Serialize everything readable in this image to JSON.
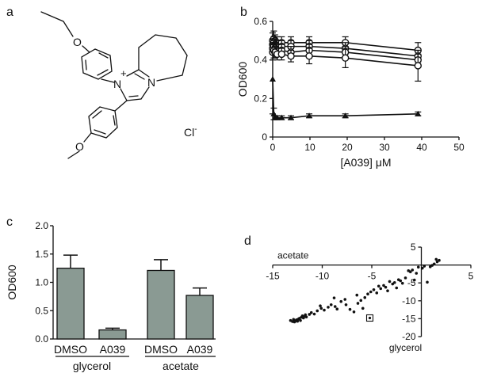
{
  "panels": {
    "a": "a",
    "b": "b",
    "c": "c",
    "d": "d"
  },
  "structure": {
    "nplus": "N",
    "plus": "+",
    "n": "N",
    "o1": "O",
    "o2": "O",
    "cl": "Cl",
    "clminus": "-"
  },
  "chart_data": [
    {
      "id": "b",
      "type": "line",
      "xlabel": "[A039] μM",
      "ylabel": "OD600",
      "xlim": [
        0,
        50
      ],
      "ylim": [
        0,
        0.6
      ],
      "xticks": [
        0,
        10,
        20,
        30,
        40,
        50
      ],
      "yticks": [
        0,
        0.2,
        0.4,
        0.6
      ],
      "x": [
        0,
        0.3,
        0.6,
        1.2,
        2.4,
        4.9,
        9.8,
        19.5,
        39
      ],
      "series": [
        {
          "marker": "circle",
          "values": [
            0.5,
            0.51,
            0.5,
            0.49,
            0.49,
            0.49,
            0.49,
            0.49,
            0.45
          ],
          "err": [
            0.04,
            0.04,
            0.03,
            0.03,
            0.03,
            0.03,
            0.03,
            0.03,
            0.04
          ]
        },
        {
          "marker": "circle",
          "values": [
            0.48,
            0.49,
            0.48,
            0.47,
            0.47,
            0.47,
            0.47,
            0.46,
            0.42
          ],
          "err": [
            0.03,
            0.03,
            0.03,
            0.03,
            0.03,
            0.03,
            0.03,
            0.03,
            0.03
          ]
        },
        {
          "marker": "circle",
          "values": [
            0.46,
            0.47,
            0.46,
            0.45,
            0.45,
            0.44,
            0.45,
            0.44,
            0.4
          ],
          "err": [
            0.03,
            0.03,
            0.03,
            0.03,
            0.03,
            0.03,
            0.03,
            0.03,
            0.03
          ]
        },
        {
          "marker": "circle",
          "values": [
            0.44,
            0.45,
            0.44,
            0.43,
            0.43,
            0.42,
            0.42,
            0.41,
            0.37
          ],
          "err": [
            0.04,
            0.04,
            0.03,
            0.03,
            0.03,
            0.03,
            0.04,
            0.05,
            0.08
          ]
        },
        {
          "marker": "triangle",
          "values": [
            0.3,
            0.12,
            0.1,
            0.1,
            0.1,
            0.1,
            0.11,
            0.11,
            0.12
          ],
          "err": [
            0.18,
            0.03,
            0.01,
            0.01,
            0.01,
            0.01,
            0.01,
            0.01,
            0.01
          ]
        }
      ]
    },
    {
      "id": "c",
      "type": "bar",
      "ylabel": "OD600",
      "ylim": [
        0,
        2.0
      ],
      "yticks": [
        0.0,
        0.5,
        1.0,
        1.5,
        2.0
      ],
      "categories": [
        "DMSO",
        "A039",
        "DMSO",
        "A039"
      ],
      "groups": [
        "glycerol",
        "acetate"
      ],
      "values": [
        1.25,
        0.16,
        1.21,
        0.77
      ],
      "err": [
        0.23,
        0.03,
        0.19,
        0.13
      ],
      "color": "#8a9a93"
    },
    {
      "id": "d",
      "type": "scatter",
      "xlabel": "acetate",
      "ylabel": "glycerol",
      "xlim": [
        -15,
        5
      ],
      "ylim": [
        -20,
        5
      ],
      "xticks": [
        -15,
        -10,
        -5,
        5
      ],
      "yticks": [
        5,
        -5,
        -10,
        -15,
        -20
      ],
      "highlight": {
        "x": -5.2,
        "y": -14.8
      },
      "points": [
        [
          -13.2,
          -15.5
        ],
        [
          -13,
          -15.8
        ],
        [
          -12.9,
          -15.2
        ],
        [
          -12.8,
          -15.9
        ],
        [
          -12.7,
          -15.6
        ],
        [
          -12.6,
          -15.3
        ],
        [
          -12.5,
          -15.7
        ],
        [
          -12.4,
          -15.1
        ],
        [
          -12.3,
          -14.9
        ],
        [
          -12.2,
          -15.5
        ],
        [
          -12.1,
          -14.6
        ],
        [
          -12,
          -14.2
        ],
        [
          -11.9,
          -14.8
        ],
        [
          -11.8,
          -14.4
        ],
        [
          -11.7,
          -13.9
        ],
        [
          -11.6,
          -14.5
        ],
        [
          -11.3,
          -13.8
        ],
        [
          -11.1,
          -13.3
        ],
        [
          -10.8,
          -13.7
        ],
        [
          -10.5,
          -12.8
        ],
        [
          -10.1,
          -12.1
        ],
        [
          -9.8,
          -12.6
        ],
        [
          -9.4,
          -11.8
        ],
        [
          -9.1,
          -11.1
        ],
        [
          -8.7,
          -11.6
        ],
        [
          -8.5,
          -12.3
        ],
        [
          -8.1,
          -10.2
        ],
        [
          -7.7,
          -9.6
        ],
        [
          -7.6,
          -11.1
        ],
        [
          -7.2,
          -12.4
        ],
        [
          -6.8,
          -13.1
        ],
        [
          -6.4,
          -10.7
        ],
        [
          -6.1,
          -9.9
        ],
        [
          -5.7,
          -9.1
        ],
        [
          -5.4,
          -8.1
        ],
        [
          -5.1,
          -7.5
        ],
        [
          -4.8,
          -6.9
        ],
        [
          -4.5,
          -7.8
        ],
        [
          -4.3,
          -5.9
        ],
        [
          -4.1,
          -6.6
        ],
        [
          -3.8,
          -5.7
        ],
        [
          -3.6,
          -6.2
        ],
        [
          -3.4,
          -7.2
        ],
        [
          -3.2,
          -4.6
        ],
        [
          -2.9,
          -5.3
        ],
        [
          -2.7,
          -4.9
        ],
        [
          -2.5,
          -6.4
        ],
        [
          -2.3,
          -4.1
        ],
        [
          -2.1,
          -4.4
        ],
        [
          -1.9,
          -5.1
        ],
        [
          -1.6,
          -3.6
        ],
        [
          -1.3,
          -1.6
        ],
        [
          -1.1,
          -1.9
        ],
        [
          -0.9,
          -1.4
        ],
        [
          -0.7,
          -4.2
        ],
        [
          -0.5,
          -2.3
        ],
        [
          -0.3,
          -0.6
        ],
        [
          0.1,
          -0.9
        ],
        [
          0.3,
          -0.3
        ],
        [
          0.6,
          -4.8
        ],
        [
          0.9,
          -0.5
        ],
        [
          1.1,
          -0.1
        ],
        [
          1.3,
          0.3
        ],
        [
          1.6,
          0.9
        ],
        [
          1.8,
          1.3
        ],
        [
          1.5,
          1.6
        ],
        [
          -8.8,
          -9.2
        ],
        [
          -10.2,
          -11.4
        ],
        [
          -6.5,
          -8.4
        ],
        [
          -5.9,
          -12.1
        ]
      ]
    }
  ]
}
